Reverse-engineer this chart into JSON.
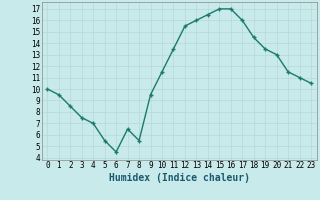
{
  "x": [
    0,
    1,
    2,
    3,
    4,
    5,
    6,
    7,
    8,
    9,
    10,
    11,
    12,
    13,
    14,
    15,
    16,
    17,
    18,
    19,
    20,
    21,
    22,
    23
  ],
  "y": [
    10.0,
    9.5,
    8.5,
    7.5,
    7.0,
    5.5,
    4.5,
    6.5,
    5.5,
    9.5,
    11.5,
    13.5,
    15.5,
    16.0,
    16.5,
    17.0,
    17.0,
    16.0,
    14.5,
    13.5,
    13.0,
    11.5,
    11.0,
    10.5
  ],
  "xlim": [
    -0.5,
    23.5
  ],
  "ylim": [
    3.8,
    17.6
  ],
  "yticks": [
    4,
    5,
    6,
    7,
    8,
    9,
    10,
    11,
    12,
    13,
    14,
    15,
    16,
    17
  ],
  "xticks": [
    0,
    1,
    2,
    3,
    4,
    5,
    6,
    7,
    8,
    9,
    10,
    11,
    12,
    13,
    14,
    15,
    16,
    17,
    18,
    19,
    20,
    21,
    22,
    23
  ],
  "xlabel": "Humidex (Indice chaleur)",
  "line_color": "#1a7a6e",
  "marker": "+",
  "bg_color": "#c8eaea",
  "grid_color": "#b8d8d8",
  "tick_label_fontsize": 5.5,
  "xlabel_fontsize": 7.0
}
